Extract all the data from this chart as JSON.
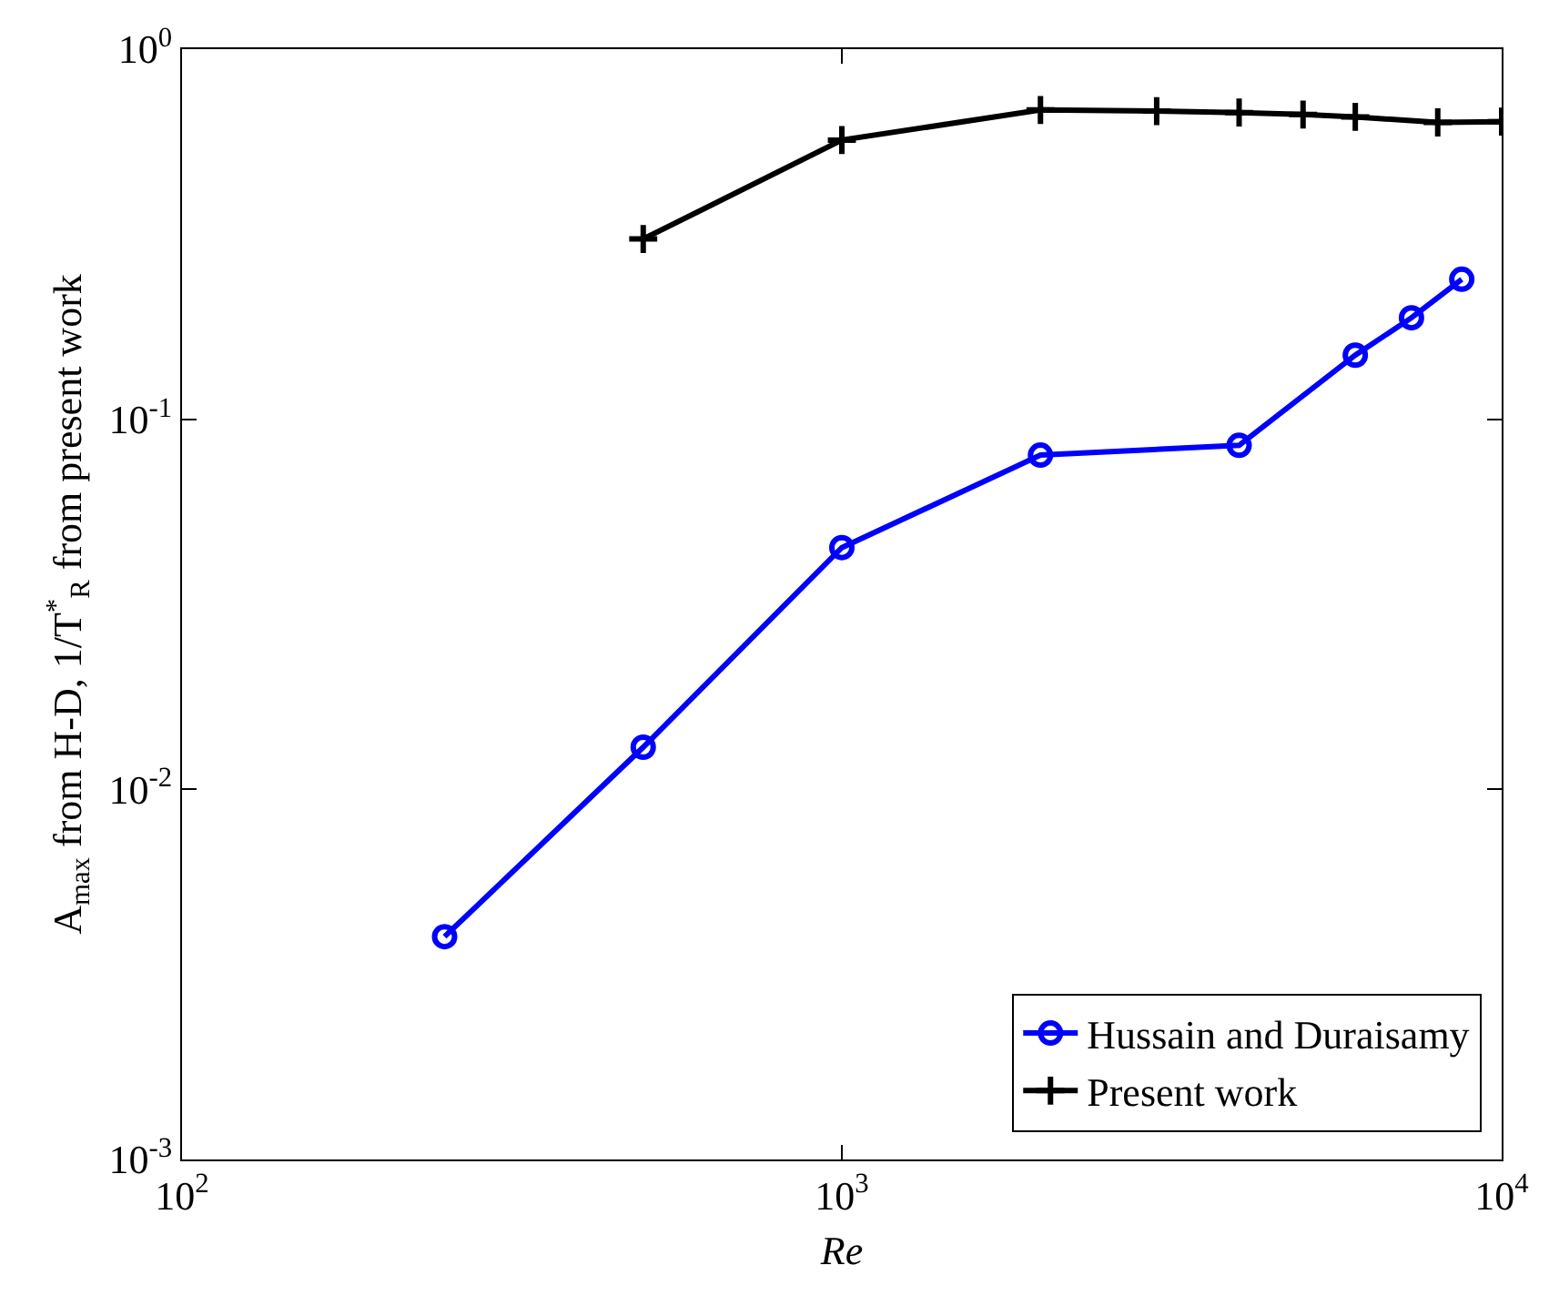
{
  "chart_data": {
    "type": "line",
    "xlabel": "Re",
    "ylabel": "A$_{max}$ from H-D, 1/T$^{*}$$_{R}$ from present work",
    "log": "xy",
    "grid": false,
    "legend": "bottom right",
    "line_style": "solid",
    "xlim": [
      100,
      10000
    ],
    "xticks": [
      {
        "value": 100,
        "label": "10$^{2}$"
      },
      {
        "value": 1000,
        "label": "10$^{3}$"
      },
      {
        "value": 10000,
        "label": "10$^{4}$"
      }
    ],
    "ylim": [
      0.001,
      1
    ],
    "yticks": [
      {
        "value": 0.001,
        "label": "10$^{-3}$"
      },
      {
        "value": 0.01,
        "label": "10$^{-2}$"
      },
      {
        "value": 0.1,
        "label": "10$^{-1}$"
      },
      {
        "value": 1,
        "label": "10$^{0}$"
      }
    ],
    "series": [
      {
        "name": "Hussain and Duraisamy",
        "color": "#0000ff",
        "marker": "circle",
        "x": [
          250,
          500,
          1000,
          2000,
          4000,
          6000,
          7300,
          8700
        ],
        "values": [
          0.004,
          0.013,
          0.045,
          0.08,
          0.085,
          0.149,
          0.188,
          0.239
        ]
      },
      {
        "name": "Present work",
        "color": "#000000",
        "marker": "cross",
        "x": [
          500,
          1000,
          2000,
          3000,
          4000,
          5000,
          6000,
          8000,
          10000
        ],
        "values": [
          0.307,
          0.568,
          0.685,
          0.68,
          0.674,
          0.666,
          0.656,
          0.634,
          0.637
        ]
      }
    ]
  }
}
